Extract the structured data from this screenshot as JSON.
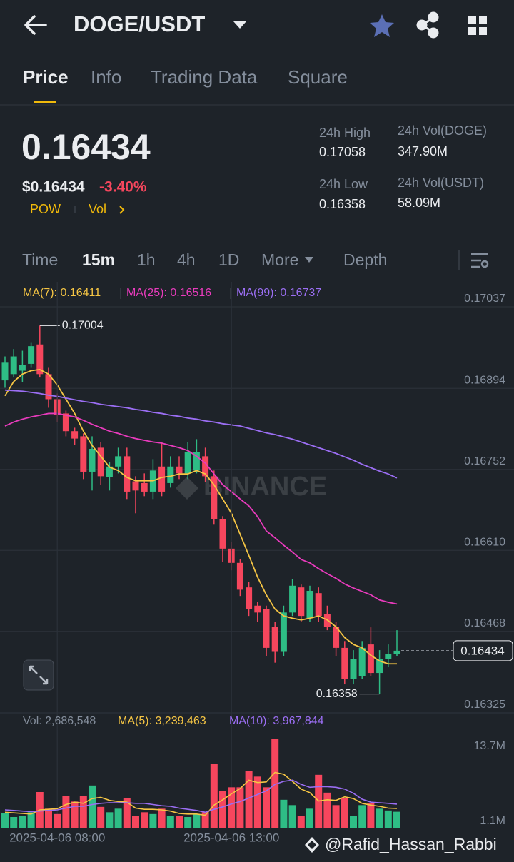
{
  "header": {
    "pair": "DOGE/USDT"
  },
  "tabs": [
    "Price",
    "Info",
    "Trading Data",
    "Square"
  ],
  "price": {
    "last": "0.16434",
    "usd": "$0.16434",
    "change": "-3.40%",
    "tags": [
      "POW",
      "Vol"
    ]
  },
  "stats": [
    {
      "label": "24h High",
      "value": "0.17058"
    },
    {
      "label": "24h Low",
      "value": "0.16358"
    },
    {
      "label": "24h Vol(DOGE)",
      "value": "347.90M"
    },
    {
      "label": "24h Vol(USDT)",
      "value": "58.09M"
    }
  ],
  "intervals": [
    "Time",
    "15m",
    "1h",
    "4h",
    "1D",
    "More",
    "Depth"
  ],
  "watermark": "BINANCE",
  "credit": "@Rafid_Hassan_Rabbi",
  "chart_data": [
    {
      "type": "candlestick",
      "up_color": "#2ebd85",
      "down_color": "#f6465d",
      "open": [
        0.16908,
        0.16919,
        0.16925,
        0.16937,
        0.16971,
        0.16919,
        0.16875,
        0.1685,
        0.16819,
        0.1681,
        0.16748,
        0.1679,
        0.16738,
        0.16757,
        0.16775,
        0.16731,
        0.16728,
        0.16713,
        0.16757,
        0.16728,
        0.16757,
        0.16745,
        0.1675,
        0.16775,
        0.1674,
        0.16665,
        0.16613,
        0.16588,
        0.16545,
        0.16513,
        0.16507,
        0.16476,
        0.16432,
        0.16501,
        0.16545,
        0.16491,
        0.16535,
        0.16498,
        0.16476,
        0.16439,
        0.16385,
        0.16389,
        0.16445,
        0.16395,
        0.1642,
        0.16428
      ],
      "high": [
        0.1695,
        0.16963,
        0.1696,
        0.16975,
        0.17004,
        0.1693,
        0.16885,
        0.16855,
        0.16825,
        0.16815,
        0.1681,
        0.168,
        0.16765,
        0.1679,
        0.1679,
        0.1674,
        0.16745,
        0.1677,
        0.168,
        0.16775,
        0.16775,
        0.168,
        0.16805,
        0.1679,
        0.1675,
        0.1667,
        0.16625,
        0.16595,
        0.16555,
        0.1652,
        0.16513,
        0.16485,
        0.16513,
        0.1656,
        0.1655,
        0.16548,
        0.16545,
        0.16513,
        0.16485,
        0.16451,
        0.16435,
        0.16451,
        0.16475,
        0.16435,
        0.16445,
        0.1647
      ],
      "low": [
        0.16895,
        0.16913,
        0.16905,
        0.1693,
        0.16913,
        0.1686,
        0.16835,
        0.1681,
        0.16795,
        0.16735,
        0.16715,
        0.16725,
        0.16715,
        0.16745,
        0.167,
        0.16675,
        0.16705,
        0.167,
        0.16705,
        0.1672,
        0.16735,
        0.16735,
        0.16745,
        0.1673,
        0.16655,
        0.1659,
        0.16575,
        0.1653,
        0.16495,
        0.16485,
        0.16425,
        0.16413,
        0.16425,
        0.16495,
        0.16485,
        0.16485,
        0.16485,
        0.1647,
        0.16425,
        0.16375,
        0.16375,
        0.16385,
        0.1639,
        0.16358,
        0.16405,
        0.16425
      ],
      "close": [
        0.16939,
        0.1695,
        0.16935,
        0.16968,
        0.16919,
        0.16875,
        0.16848,
        0.16819,
        0.16806,
        0.16748,
        0.16788,
        0.1674,
        0.16757,
        0.16775,
        0.16713,
        0.16715,
        0.16713,
        0.1675,
        0.16713,
        0.16757,
        0.16745,
        0.16782,
        0.16782,
        0.1674,
        0.16665,
        0.16613,
        0.16588,
        0.16541,
        0.16507,
        0.16501,
        0.16439,
        0.16432,
        0.16501,
        0.16548,
        0.16495,
        0.16539,
        0.16495,
        0.16476,
        0.16439,
        0.16385,
        0.1642,
        0.16439,
        0.16395,
        0.1642,
        0.16428,
        0.16434
      ],
      "overlays": [
        {
          "name": "MA(7): 0.16411",
          "color": "#f5c544",
          "values": [
            0.16881,
            0.16906,
            0.16919,
            0.16925,
            0.16927,
            0.16919,
            0.169,
            0.16875,
            0.1685,
            0.16819,
            0.16794,
            0.16775,
            0.16756,
            0.1675,
            0.16738,
            0.16732,
            0.16732,
            0.16732,
            0.16738,
            0.1674,
            0.16744,
            0.16744,
            0.1675,
            0.16744,
            0.16725,
            0.167,
            0.16675,
            0.16638,
            0.16601,
            0.16563,
            0.16532,
            0.16507,
            0.16495,
            0.16491,
            0.16488,
            0.16491,
            0.16495,
            0.16488,
            0.16476,
            0.16457,
            0.16445,
            0.16439,
            0.16426,
            0.16416,
            0.16411,
            0.16411
          ]
        },
        {
          "name": "MA(25): 0.16516",
          "color": "#e93bbd",
          "values": [
            0.16828,
            0.16835,
            0.1684,
            0.16844,
            0.16847,
            0.1685,
            0.1685,
            0.16847,
            0.16844,
            0.16838,
            0.16831,
            0.16825,
            0.16819,
            0.16815,
            0.1681,
            0.16806,
            0.16803,
            0.168,
            0.16798,
            0.16794,
            0.1679,
            0.16785,
            0.16775,
            0.16763,
            0.16744,
            0.16725,
            0.16713,
            0.167,
            0.16688,
            0.16669,
            0.16644,
            0.16632,
            0.16619,
            0.16607,
            0.16594,
            0.16588,
            0.16578,
            0.16569,
            0.16561,
            0.16551,
            0.16544,
            0.16538,
            0.16532,
            0.16523,
            0.16519,
            0.16516
          ]
        },
        {
          "name": "MA(99): 0.16737",
          "color": "#9b6ef3",
          "values": [
            0.16891,
            0.1689,
            0.16889,
            0.16887,
            0.16885,
            0.16882,
            0.1688,
            0.16877,
            0.16874,
            0.16871,
            0.16869,
            0.16866,
            0.16864,
            0.16862,
            0.1686,
            0.16857,
            0.16855,
            0.16852,
            0.1685,
            0.16847,
            0.16845,
            0.16842,
            0.1684,
            0.16837,
            0.16835,
            0.16832,
            0.1683,
            0.16828,
            0.16824,
            0.1682,
            0.16816,
            0.16813,
            0.16809,
            0.16805,
            0.168,
            0.16795,
            0.1679,
            0.16785,
            0.1678,
            0.16774,
            0.16768,
            0.16761,
            0.16755,
            0.16749,
            0.16744,
            0.16737
          ]
        }
      ],
      "annotations": [
        {
          "index": 4,
          "value": 0.17004,
          "label": "0.17004"
        },
        {
          "index": 43,
          "value": 0.16358,
          "label": "0.16358"
        }
      ],
      "current": {
        "value": 0.16434,
        "label": "0.16434"
      },
      "ylim": [
        0.16325,
        0.17037
      ],
      "yticks": [
        0.17037,
        0.16894,
        0.16752,
        {
          "value": 0.1661,
          "label": "0.16610"
        },
        0.16468,
        0.16325
      ],
      "grid": true
    },
    {
      "type": "bar",
      "categories": [
        null,
        null,
        null,
        null,
        null,
        null,
        "2025-04-06 08:00",
        null,
        null,
        null,
        null,
        null,
        null,
        null,
        null,
        null,
        null,
        null,
        null,
        null,
        null,
        null,
        null,
        null,
        null,
        null,
        "2025-04-06 13:00",
        null,
        null,
        null,
        null,
        null,
        null,
        null,
        null,
        null,
        null,
        null,
        null,
        null,
        null,
        null,
        null,
        null,
        null,
        null
      ],
      "series": [
        {
          "name": "Vol: 2,686,548",
          "values": [
            2400000,
            1800000,
            2000000,
            2600000,
            6000000,
            3200000,
            2300000,
            5400000,
            4400000,
            5400000,
            7100000,
            3500000,
            2600000,
            3200000,
            5000000,
            2000000,
            2600000,
            2300000,
            3200000,
            2000000,
            2000000,
            1800000,
            2300000,
            2600000,
            10700000,
            6200000,
            6800000,
            6800000,
            9500000,
            8600000,
            6800000,
            15000000,
            4700000,
            3800000,
            2000000,
            3200000,
            8900000,
            5900000,
            3800000,
            5000000,
            2000000,
            3800000,
            4200000,
            3200000,
            2900000,
            2686548
          ]
        }
      ],
      "overlays": [
        {
          "name": "MA(5): 3,239,463",
          "color": "#f5c544",
          "values": [
            2600000,
            2500000,
            2400000,
            2300000,
            3000000,
            3100000,
            3200000,
            3900000,
            4300000,
            4100000,
            4900000,
            5100000,
            4600000,
            4400000,
            4300000,
            3300000,
            3100000,
            3100000,
            3000000,
            2800000,
            2400000,
            2300000,
            2300000,
            2100000,
            3800000,
            4700000,
            5700000,
            6600000,
            8000000,
            7600000,
            7700000,
            9300000,
            9000000,
            7800000,
            6500000,
            5900000,
            4500000,
            4700000,
            4600000,
            5200000,
            4900000,
            4100000,
            3800000,
            3600000,
            3300000,
            3239463
          ]
        },
        {
          "name": "MA(10): 3,967,844",
          "color": "#9b6ef3",
          "values": [
            3000000,
            2900000,
            2800000,
            2700000,
            2800000,
            2900000,
            3000000,
            3300000,
            3600000,
            3600000,
            3900000,
            4100000,
            4200000,
            4200000,
            4200000,
            4100000,
            4100000,
            3900000,
            3700000,
            3600000,
            3300000,
            3100000,
            2900000,
            2600000,
            3100000,
            3500000,
            4000000,
            4400000,
            5000000,
            5600000,
            6200000,
            7300000,
            7800000,
            8000000,
            7300000,
            6800000,
            6900000,
            6900000,
            6800000,
            6500000,
            5800000,
            4800000,
            4300000,
            4200000,
            4100000,
            3967844
          ]
        }
      ],
      "ylim": [
        0,
        15600000
      ],
      "yticks": [
        {
          "value": 13700000,
          "label": "13.7M"
        },
        {
          "value": 1100000,
          "label": "1.1M"
        }
      ]
    }
  ]
}
